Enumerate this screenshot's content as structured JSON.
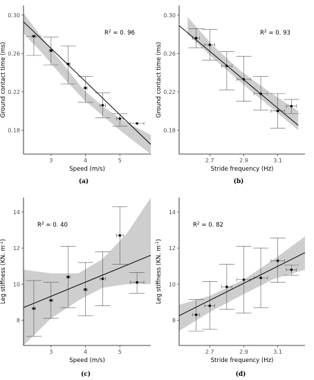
{
  "chart_data": [
    {
      "type": "scatter",
      "caption": "(a)",
      "annotation": {
        "prefix": "R",
        "sup": "2",
        "suffix": " = 0. 96"
      },
      "xlabel": "Speed (m/s)",
      "ylabel": "Ground contact time (ms)",
      "xlim": [
        2.2,
        5.9
      ],
      "ylim": [
        0.155,
        0.31
      ],
      "xticks": [
        3,
        4,
        5
      ],
      "yticks": [
        0.18,
        0.22,
        0.26,
        0.3
      ],
      "ytick_labels": [
        "0.18",
        "0.22",
        "0.26",
        "0.30"
      ],
      "points": [
        {
          "x": 2.5,
          "y": 0.278,
          "xerr": 0.05,
          "ylo": 0.258,
          "yhi": 0.278
        },
        {
          "x": 3.0,
          "y": 0.263,
          "xerr": 0.05,
          "ylo": 0.248,
          "yhi": 0.277
        },
        {
          "x": 3.5,
          "y": 0.249,
          "xerr": 0.05,
          "ylo": 0.228,
          "yhi": 0.268
        },
        {
          "x": 4.0,
          "y": 0.224,
          "xerr": 0.05,
          "ylo": 0.209,
          "yhi": 0.236
        },
        {
          "x": 4.5,
          "y": 0.206,
          "xerr": 0.08,
          "ylo": 0.193,
          "yhi": 0.219
        },
        {
          "x": 5.0,
          "y": 0.192,
          "xerr": 0.1,
          "ylo": 0.184,
          "yhi": 0.197
        },
        {
          "x": 5.5,
          "y": 0.187,
          "xerr": 0.2,
          "ylo": 0.187,
          "yhi": 0.187
        }
      ],
      "fit": {
        "x0": 2.2,
        "y0": 0.293,
        "x1": 5.9,
        "y1": 0.165
      },
      "band": {
        "lower": [
          0.281,
          0.26,
          0.235,
          0.212,
          0.195,
          0.177,
          0.155
        ],
        "upper": [
          0.302,
          0.276,
          0.249,
          0.222,
          0.205,
          0.19,
          0.175
        ]
      },
      "band_x": [
        2.2,
        2.75,
        3.35,
        3.95,
        4.5,
        5.1,
        5.9
      ],
      "grid": false
    },
    {
      "type": "scatter",
      "caption": "(b)",
      "annotation": {
        "prefix": "R",
        "sup": "2",
        "suffix": " = 0. 93"
      },
      "xlabel": "Stride frequency (Hz)",
      "ylabel": "Ground contact time (ms)",
      "xlim": [
        2.52,
        3.26
      ],
      "ylim": [
        0.155,
        0.31
      ],
      "xticks": [
        2.7,
        2.9,
        3.1
      ],
      "yticks": [
        0.18,
        0.22,
        0.26,
        0.3
      ],
      "ytick_labels": [
        "0.18",
        "0.22",
        "0.26",
        "0.30"
      ],
      "points": [
        {
          "x": 2.62,
          "y": 0.276,
          "xerr": 0.02,
          "ylo": 0.266,
          "yhi": 0.286
        },
        {
          "x": 2.7,
          "y": 0.269,
          "xerr": 0.03,
          "ylo": 0.253,
          "yhi": 0.285
        },
        {
          "x": 2.8,
          "y": 0.247,
          "xerr": 0.03,
          "ylo": 0.222,
          "yhi": 0.262
        },
        {
          "x": 2.9,
          "y": 0.233,
          "xerr": 0.04,
          "ylo": 0.21,
          "yhi": 0.257
        },
        {
          "x": 3.0,
          "y": 0.218,
          "xerr": 0.04,
          "ylo": 0.201,
          "yhi": 0.236
        },
        {
          "x": 3.1,
          "y": 0.2,
          "xerr": 0.04,
          "ylo": 0.182,
          "yhi": 0.218
        },
        {
          "x": 3.18,
          "y": 0.205,
          "xerr": 0.03,
          "ylo": 0.197,
          "yhi": 0.212
        }
      ],
      "fit": {
        "x0": 2.52,
        "y0": 0.289,
        "x1": 3.22,
        "y1": 0.185
      },
      "band": {
        "lower": [
          0.28,
          0.255,
          0.23,
          0.205,
          0.18
        ],
        "upper": [
          0.298,
          0.268,
          0.242,
          0.22,
          0.2
        ]
      },
      "band_x": [
        2.57,
        2.72,
        2.88,
        3.05,
        3.22
      ],
      "grid": false
    },
    {
      "type": "scatter",
      "caption": "(c)",
      "annotation": {
        "prefix": "R",
        "sup": "2",
        "suffix": " = 0. 40"
      },
      "xlabel": "Speed (m/s)",
      "ylabel": "Leg stiffness (KN. m",
      "ylabel_sup": "-1",
      "ylabel_close": ")",
      "xlim": [
        2.2,
        5.9
      ],
      "ylim": [
        6.6,
        14.8
      ],
      "xticks": [
        3,
        4,
        5
      ],
      "yticks": [
        8,
        10,
        12,
        14
      ],
      "ytick_labels": [
        "8",
        "10",
        "12",
        "14"
      ],
      "points": [
        {
          "x": 2.5,
          "y": 8.65,
          "xerr": 0.05,
          "ylo": 7.1,
          "yhi": 10.2
        },
        {
          "x": 3.0,
          "y": 9.1,
          "xerr": 0.05,
          "ylo": 8.1,
          "yhi": 10.1
        },
        {
          "x": 3.5,
          "y": 10.4,
          "xerr": 0.05,
          "ylo": 8.7,
          "yhi": 12.1
        },
        {
          "x": 4.0,
          "y": 9.7,
          "xerr": 0.05,
          "ylo": 8.25,
          "yhi": 11.2
        },
        {
          "x": 4.5,
          "y": 10.3,
          "xerr": 0.08,
          "ylo": 8.8,
          "yhi": 11.8
        },
        {
          "x": 5.0,
          "y": 12.7,
          "xerr": 0.1,
          "ylo": 11.1,
          "yhi": 14.3
        },
        {
          "x": 5.5,
          "y": 10.1,
          "xerr": 0.2,
          "ylo": 9.5,
          "yhi": 10.65
        }
      ],
      "fit": {
        "x0": 2.2,
        "y0": 8.7,
        "x1": 5.9,
        "y1": 11.6
      },
      "band": {
        "lower": [
          6.6,
          8.1,
          9.1,
          9.8,
          10.0,
          10.0
        ],
        "upper": [
          10.8,
          10.6,
          10.6,
          11.4,
          12.8,
          14.8
        ]
      },
      "band_x": [
        2.2,
        3.0,
        3.8,
        4.5,
        5.2,
        5.9
      ],
      "grid": false
    },
    {
      "type": "scatter",
      "caption": "(d)",
      "annotation": {
        "prefix": "R",
        "sup": "2",
        "suffix": " = 0. 82"
      },
      "xlabel": "Stride frequency (Hz)",
      "ylabel": "Leg stiffness (KN. m",
      "ylabel_sup": "-1",
      "ylabel_close": ")",
      "xlim": [
        2.52,
        3.26
      ],
      "ylim": [
        6.6,
        14.8
      ],
      "xticks": [
        2.7,
        2.9,
        3.1
      ],
      "yticks": [
        8,
        10,
        12,
        14
      ],
      "ytick_labels": [
        "8",
        "10",
        "12",
        "14"
      ],
      "points": [
        {
          "x": 2.62,
          "y": 8.3,
          "xerr": 0.02,
          "ylo": 7.4,
          "yhi": 9.15
        },
        {
          "x": 2.7,
          "y": 8.8,
          "xerr": 0.03,
          "ylo": 7.5,
          "yhi": 10.15
        },
        {
          "x": 2.8,
          "y": 9.85,
          "xerr": 0.03,
          "ylo": 8.6,
          "yhi": 11.1
        },
        {
          "x": 2.9,
          "y": 10.25,
          "xerr": 0.04,
          "ylo": 8.4,
          "yhi": 12.1
        },
        {
          "x": 3.0,
          "y": 10.35,
          "xerr": 0.04,
          "ylo": 8.7,
          "yhi": 12.0
        },
        {
          "x": 3.1,
          "y": 11.3,
          "xerr": 0.04,
          "ylo": 10.1,
          "yhi": 12.55
        },
        {
          "x": 3.18,
          "y": 10.8,
          "xerr": 0.03,
          "ylo": 10.5,
          "yhi": 11.05
        }
      ],
      "fit": {
        "x0": 2.52,
        "y0": 8.25,
        "x1": 3.26,
        "y1": 11.75
      },
      "band": {
        "lower": [
          7.4,
          8.45,
          9.45,
          10.3,
          10.8
        ],
        "upper": [
          8.85,
          9.35,
          10.25,
          11.4,
          12.65
        ]
      },
      "band_x": [
        2.52,
        2.7,
        2.9,
        3.08,
        3.26
      ],
      "grid": false
    }
  ]
}
